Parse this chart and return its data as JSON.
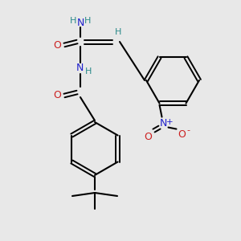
{
  "bg_color": "#e8e8e8",
  "atom_colors": {
    "C": "#000000",
    "H": "#2a8a8a",
    "N": "#2020cc",
    "O": "#cc2020",
    "bond": "#000000"
  },
  "figsize": [
    3.0,
    3.0
  ],
  "dpi": 100
}
